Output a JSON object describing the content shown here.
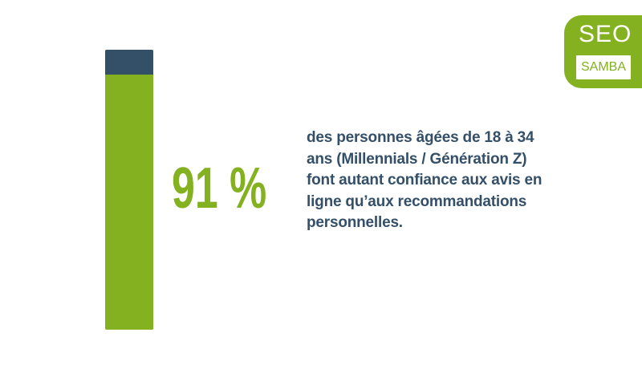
{
  "chart_data": {
    "type": "bar",
    "value_percent": 91,
    "value_label": "91 %",
    "description": "des personnes âgées de 18 à 34 ans (Millennials / Génération Z) font autant confiance aux avis en ligne qu’aux recommandations personnelles.",
    "colors": {
      "fill": "#84b11f",
      "remainder": "#344f68",
      "text": "#344f68"
    }
  },
  "logo": {
    "line1": "SEO",
    "line2": "SAMBA",
    "color": "#84b11f"
  }
}
